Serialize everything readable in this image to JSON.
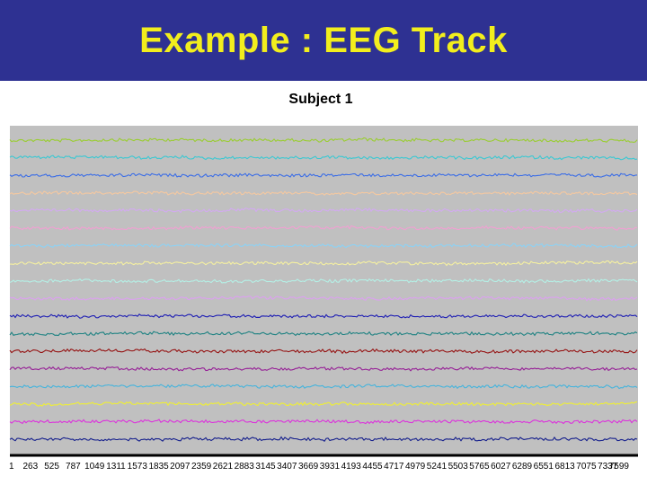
{
  "header": {
    "title": "Example : EEG Track"
  },
  "colors": {
    "header_bg": "#2e3192",
    "title_text": "#f2ee1d",
    "plot_bg": "#c0c0c0"
  },
  "chart_data": {
    "type": "line",
    "title": "Subject 1",
    "xlabel": "",
    "ylabel": "",
    "grid": false,
    "legend": "none",
    "x_tick_labels": [
      "1",
      "263",
      "525",
      "787",
      "1049",
      "1311",
      "1573",
      "1835",
      "2097",
      "2359",
      "2621",
      "2883",
      "3145",
      "3407",
      "3669",
      "3931",
      "4193",
      "4455",
      "4717",
      "4979",
      "5241",
      "5503",
      "5765",
      "6027",
      "6289",
      "6551",
      "6813",
      "7075",
      "7337",
      "7599"
    ],
    "xlim": [
      1,
      7599
    ],
    "series": [
      {
        "color": "#9acd32"
      },
      {
        "color": "#3cc8d2"
      },
      {
        "color": "#3c6ee6"
      },
      {
        "color": "#f5c8a0"
      },
      {
        "color": "#d2aaf0"
      },
      {
        "color": "#f0a0d2"
      },
      {
        "color": "#8cd2f5"
      },
      {
        "color": "#f5f0a0"
      },
      {
        "color": "#b4f0e6"
      },
      {
        "color": "#dca0f0"
      },
      {
        "color": "#1e1eb4"
      },
      {
        "color": "#1e8282"
      },
      {
        "color": "#961414"
      },
      {
        "color": "#961e96"
      },
      {
        "color": "#46b4dc"
      },
      {
        "color": "#f0f032"
      },
      {
        "color": "#dc32dc"
      },
      {
        "color": "#141e8c"
      }
    ]
  }
}
